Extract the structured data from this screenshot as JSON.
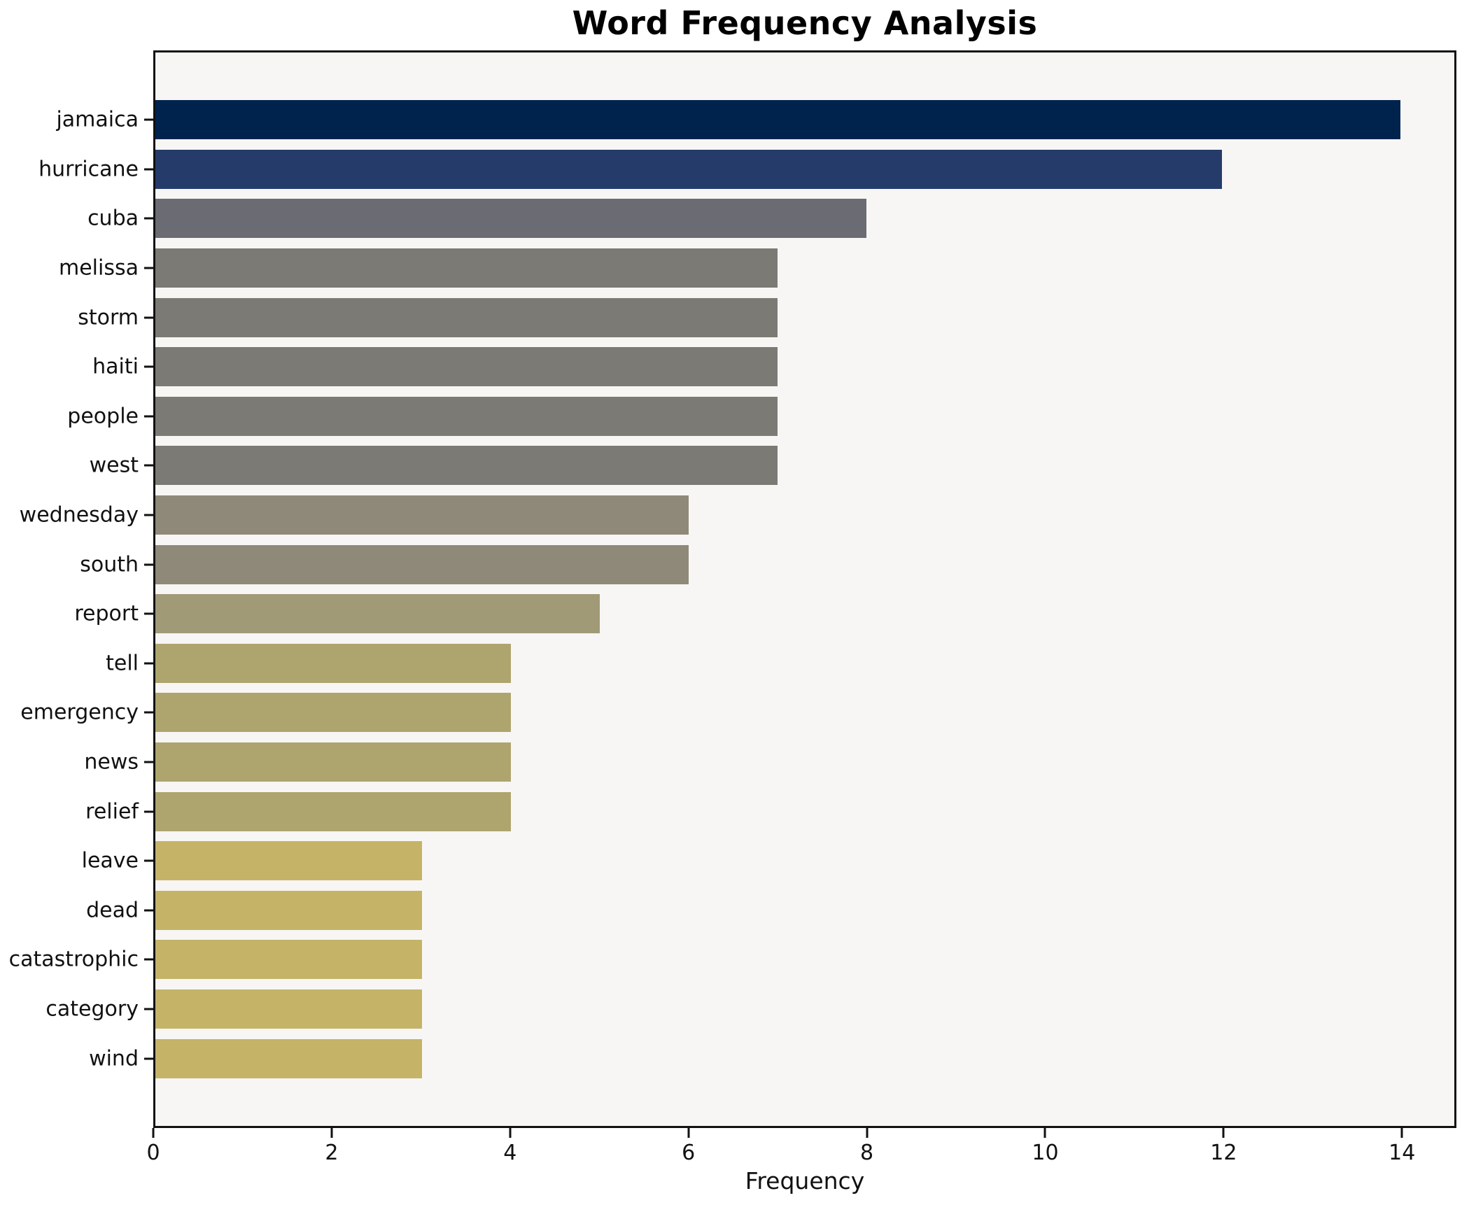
{
  "title": "Word Frequency Analysis",
  "xlabel": "Frequency",
  "chart_data": {
    "type": "bar",
    "orientation": "horizontal",
    "title": "Word Frequency Analysis",
    "xlabel": "Frequency",
    "ylabel": "",
    "categories": [
      "jamaica",
      "hurricane",
      "cuba",
      "melissa",
      "storm",
      "haiti",
      "people",
      "west",
      "wednesday",
      "south",
      "report",
      "tell",
      "emergency",
      "news",
      "relief",
      "leave",
      "dead",
      "catastrophic",
      "category",
      "wind"
    ],
    "values": [
      14,
      12,
      8,
      7,
      7,
      7,
      7,
      7,
      6,
      6,
      5,
      4,
      4,
      4,
      4,
      3,
      3,
      3,
      3,
      3
    ],
    "bar_colors": [
      "#00234e",
      "#253c6b",
      "#6b6c73",
      "#7b7a74",
      "#7b7a74",
      "#7b7a74",
      "#7b7a74",
      "#7b7a74",
      "#8f8979",
      "#8f8979",
      "#a09a77",
      "#aea56e",
      "#aea56e",
      "#aea56e",
      "#aea56e",
      "#c5b368",
      "#c5b368",
      "#c5b368",
      "#c5b368",
      "#c5b368"
    ],
    "xlim": [
      0,
      14.61
    ],
    "xticks": [
      0,
      2,
      4,
      6,
      8,
      10,
      12,
      14
    ],
    "grid": false,
    "legend": null,
    "plot_background": "#f7f6f4",
    "figure_background": "#ffffff",
    "axis_color": "#111111"
  }
}
